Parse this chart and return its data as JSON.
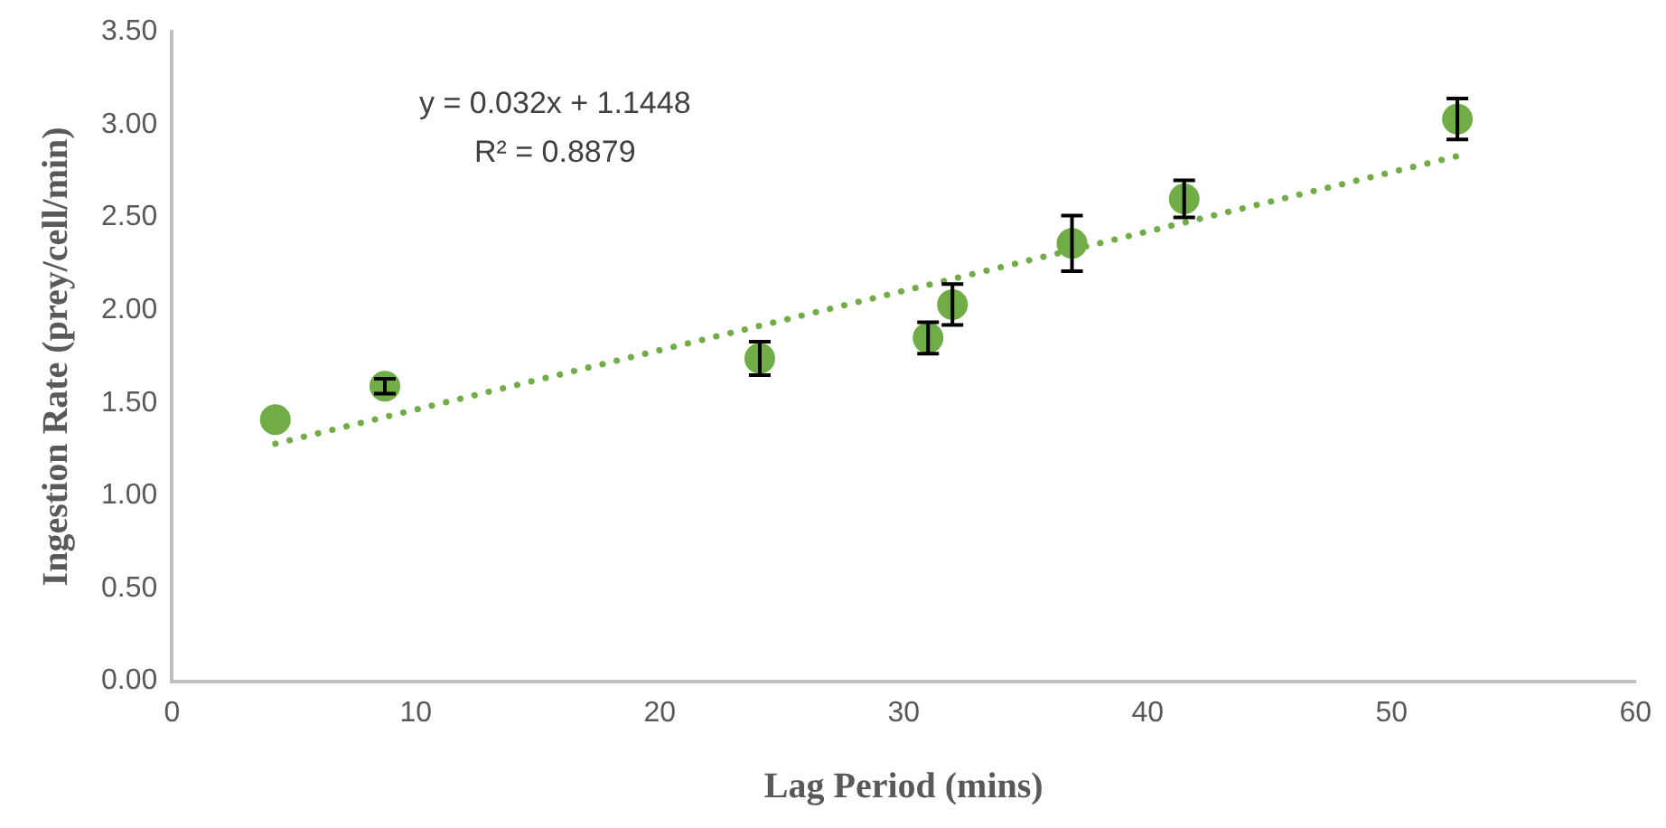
{
  "chart_data": {
    "type": "scatter",
    "xlabel": "Lag Period (mins)",
    "ylabel": "Ingestion Rate (prey/cell/min)",
    "series": [
      {
        "color": "#70ad47",
        "x": [
          4.24,
          8.73,
          24.1,
          31.0,
          32.0,
          36.9,
          41.5,
          52.7
        ],
        "values": [
          1.41,
          1.59,
          1.74,
          1.85,
          2.03,
          2.36,
          2.6,
          3.03
        ],
        "errors": [
          null,
          0.04,
          0.09,
          0.085,
          0.11,
          0.15,
          0.1,
          0.11
        ],
        "marker": "circle"
      },
      {
        "type": "line",
        "color": "#70ad47",
        "x": [
          4.24,
          52.7
        ],
        "values": [
          1.28,
          2.83
        ],
        "line_style": "dotted",
        "marker": "none"
      }
    ],
    "xlim": [
      0,
      60
    ],
    "xticks": [
      0,
      10,
      20,
      30,
      40,
      50,
      60
    ],
    "ylim": [
      0,
      3.5
    ],
    "yticks": [
      {
        "value": 0,
        "label": "0.00"
      },
      {
        "value": 0.5,
        "label": "0.50"
      },
      {
        "value": 1,
        "label": "1.00"
      },
      {
        "value": 1.5,
        "label": "1.50"
      },
      {
        "value": 2,
        "label": "2.00"
      },
      {
        "value": 2.5,
        "label": "2.50"
      },
      {
        "value": 3,
        "label": "3.00"
      },
      {
        "value": 3.5,
        "label": "3.50"
      }
    ],
    "grid": false,
    "legend": false,
    "annotations": [
      "y = 0.032x + 1.1448",
      "R² = 0.8879"
    ]
  }
}
